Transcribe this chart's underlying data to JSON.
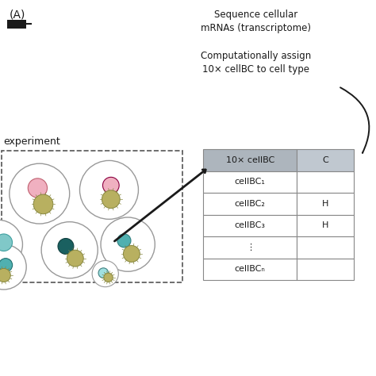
{
  "title_A": "(A)",
  "text_sequence": "Sequence cellular\nmRNAs (transcriptome)",
  "text_computationally": "Computationally assign\n10× cellBC to cell type",
  "text_experiment": "experiment",
  "table_header_col1": "10× cellBC",
  "table_header_col2": "C",
  "table_rows": [
    "cellBC₁",
    "cellBC₂",
    "cellBC₃",
    "⋮",
    "cellBCₙ"
  ],
  "table_col2": [
    "",
    "H",
    "H",
    "",
    ""
  ],
  "bg_color": "#ffffff",
  "text_color": "#1a1a1a",
  "table_header_bg": "#adb5bd",
  "table_border_color": "#888888",
  "bacteria_color": "#b8b060",
  "bacteria_edge": "#888840"
}
